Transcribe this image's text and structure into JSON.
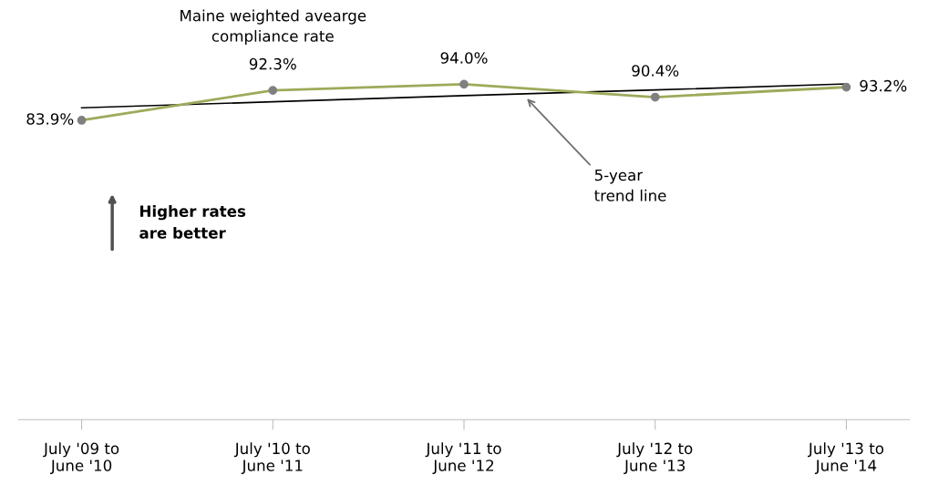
{
  "chart_data": {
    "type": "line",
    "categories": [
      "July '09 to\nJune '10",
      "July '10 to\nJune '11",
      "July '11 to\nJune '12",
      "July '12 to\nJune '13",
      "July '13 to\nJune '14"
    ],
    "series": [
      {
        "color": "#9bab5a",
        "values": [
          83.9,
          92.3,
          94.0,
          90.4,
          93.2
        ],
        "marker": "circle",
        "value_labels": [
          "83.9%",
          "92.3%",
          "94.0%",
          "90.4%",
          "93.2%"
        ]
      },
      {
        "type": "line",
        "color": "#000000",
        "values": [
          87.4,
          89.1,
          90.8,
          92.4,
          94.1
        ],
        "marker": "none"
      }
    ],
    "tick_labels": "x",
    "grid": false,
    "legend": false,
    "line_style": "solid",
    "annotations": [
      "Maine weighted avearge\ncompliance rate",
      "5-year\ntrend line",
      "Higher rates\nare better"
    ]
  }
}
